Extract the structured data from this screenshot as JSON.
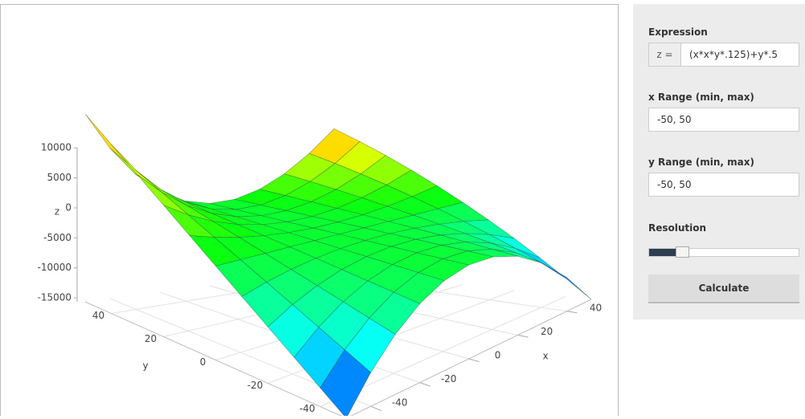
{
  "plot": {
    "x_axis_label": "x",
    "y_axis_label": "y",
    "z_axis_label": "z",
    "xlim": [
      -50,
      50
    ],
    "ylim": [
      -50,
      50
    ],
    "zlim": [
      -15650,
      15650
    ],
    "xticks": [
      -40,
      -20,
      0,
      20,
      40
    ],
    "yticks": [
      -40,
      -20,
      0,
      20,
      40
    ],
    "zticks": [
      10000,
      5000,
      0,
      -5000,
      -10000,
      -15000
    ],
    "grid_x": [
      -50,
      -40,
      -30,
      -20,
      -10,
      0,
      10,
      20,
      30,
      40,
      50
    ],
    "grid_y": [
      -50,
      -40,
      -30,
      -20,
      -10,
      0,
      10,
      20,
      30,
      40,
      50
    ],
    "z": [
      [
        -15650,
        -12520,
        -9390,
        -6260,
        -3130,
        0,
        3130,
        6260,
        9390,
        12520,
        15650
      ],
      [
        -10025,
        -8020,
        -6015,
        -4010,
        -2005,
        0,
        2005,
        4010,
        6015,
        8020,
        10025
      ],
      [
        -5650,
        -4520,
        -3390,
        -2260,
        -1130,
        0,
        1130,
        2260,
        3390,
        4520,
        5650
      ],
      [
        -2525,
        -2020,
        -1515,
        -1010,
        -505,
        0,
        505,
        1010,
        1515,
        2020,
        2525
      ],
      [
        -650,
        -520,
        -390,
        -260,
        -130,
        0,
        130,
        260,
        390,
        520,
        650
      ],
      [
        -25,
        -20,
        -15,
        -10,
        -5,
        0,
        5,
        10,
        15,
        20,
        25
      ],
      [
        -650,
        -520,
        -390,
        -260,
        -130,
        0,
        130,
        260,
        390,
        520,
        650
      ],
      [
        -2525,
        -2020,
        -1515,
        -1010,
        -505,
        0,
        505,
        1010,
        1515,
        2020,
        2525
      ],
      [
        -5650,
        -4520,
        -3390,
        -2260,
        -1130,
        0,
        1130,
        2260,
        3390,
        4520,
        5650
      ],
      [
        -10025,
        -8020,
        -6015,
        -4010,
        -2005,
        0,
        2005,
        4010,
        6015,
        8020,
        10025
      ],
      [
        -15650,
        -12520,
        -9390,
        -6260,
        -3130,
        0,
        3130,
        6260,
        9390,
        12520,
        15650
      ]
    ]
  },
  "panel": {
    "expression_label": "Expression",
    "z_prefix": "z =",
    "expression": "(x*x*y*.125)+y*.5",
    "x_range_label": "x Range (min, max)",
    "x_range": "-50, 50",
    "y_range_label": "y Range (min, max)",
    "y_range": "-50, 50",
    "resolution_label": "Resolution",
    "button": "Calculate"
  }
}
